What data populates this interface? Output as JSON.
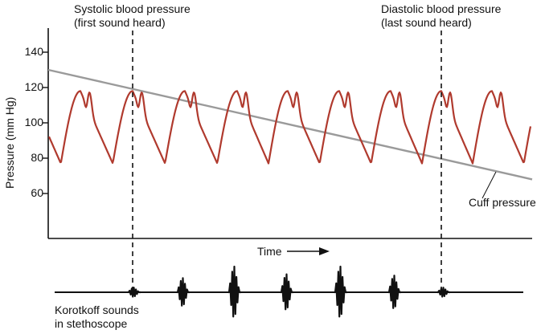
{
  "chart_data": {
    "type": "line",
    "ylabel": "Pressure (mm Hg)",
    "xlabel": "Time",
    "yticks": [
      140,
      120,
      100,
      80,
      60
    ],
    "ylim": [
      38,
      155
    ],
    "series": [
      {
        "name": "Cuff pressure",
        "start": 130,
        "end": 68,
        "color": "#9a9a9a"
      },
      {
        "name": "blood-pressure-wave",
        "min": 77,
        "max": 118,
        "color": "#b03a2e"
      }
    ],
    "markers": {
      "systolic": {
        "title": "Systolic blood pressure",
        "sub": "(first sound heard)"
      },
      "diastolic": {
        "title": "Diastolic blood pressure",
        "sub": "(last sound heard)"
      }
    },
    "cuff_label": "Cuff pressure",
    "korotkoff_label_line1": "Korotkoff sounds",
    "korotkoff_label_line2": "in stethoscope"
  }
}
